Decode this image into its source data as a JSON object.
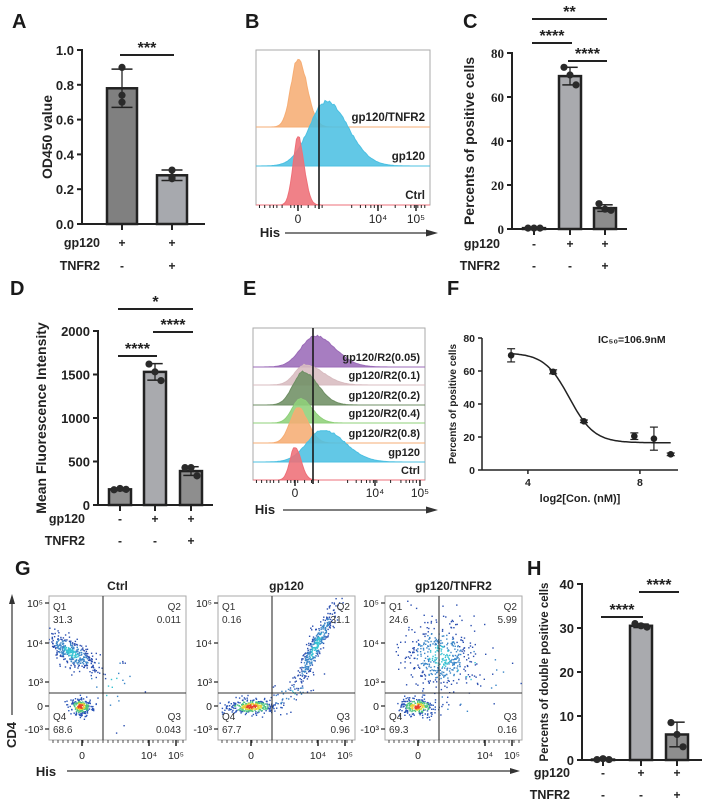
{
  "panel_labels": [
    "A",
    "B",
    "C",
    "D",
    "E",
    "F",
    "G",
    "H"
  ],
  "chart_data": [
    {
      "id": "A",
      "type": "bar",
      "ylabel": "OD450 value",
      "ylim": [
        0,
        1.0
      ],
      "yticks": [
        0,
        0.2,
        0.4,
        0.6,
        0.8,
        1.0
      ],
      "ytick_labels": [
        "0.0",
        "0.2",
        "0.4",
        "0.6",
        "0.8",
        "1.0"
      ],
      "conditions": [
        {
          "name": "gp120",
          "signs": [
            "+",
            "+"
          ]
        },
        {
          "name": "TNFR2",
          "signs": [
            "-",
            "+"
          ]
        }
      ],
      "values": [
        0.78,
        0.28
      ],
      "sd": [
        0.11,
        0.03
      ],
      "points": [
        [
          0.9,
          0.74,
          0.7
        ],
        [
          0.31,
          0.26,
          0.27
        ]
      ],
      "bar_colors": [
        "#808080",
        "#a7a9ae"
      ],
      "significance": [
        {
          "from": 0,
          "to": 1,
          "label": "***"
        }
      ]
    },
    {
      "id": "B",
      "type": "histogram",
      "xlabel": "His",
      "xtick_labels": [
        "0",
        "10⁴",
        "10⁵"
      ],
      "rows": [
        {
          "label": "gp120/TNFR2",
          "color": "#f6ad74"
        },
        {
          "label": "gp120",
          "color": "#4cc0e2"
        },
        {
          "label": "Ctrl",
          "color": "#ee6f78"
        }
      ]
    },
    {
      "id": "C",
      "type": "bar",
      "ylabel": "Percents of positive cells",
      "ylim": [
        0,
        80
      ],
      "yticks": [
        0,
        20,
        40,
        60,
        80
      ],
      "ytick_labels": [
        "0",
        "20",
        "40",
        "60",
        "80"
      ],
      "conditions": [
        {
          "name": "gp120",
          "signs": [
            "-",
            "+",
            "+"
          ]
        },
        {
          "name": "TNFR2",
          "signs": [
            "-",
            "-",
            "+"
          ]
        }
      ],
      "values": [
        0.4,
        69.5,
        9.5
      ],
      "sd": [
        0.1,
        4.0,
        1.5
      ],
      "points": [
        [
          0.4,
          0.4,
          0.4
        ],
        [
          73.5,
          70.0,
          65.5
        ],
        [
          11.5,
          9.0,
          8.5
        ]
      ],
      "bar_colors": [
        "#8c8c8c",
        "#a9aaae",
        "#8c8c8c"
      ],
      "significance": [
        {
          "from": 0,
          "to": 2,
          "label": "**"
        },
        {
          "from": 0,
          "to": 1,
          "label": "****"
        },
        {
          "from": 1,
          "to": 2,
          "label": "****"
        }
      ]
    },
    {
      "id": "D",
      "type": "bar",
      "ylabel": "Mean  Fluorescence Intensity",
      "ylim": [
        0,
        2000
      ],
      "yticks": [
        0,
        500,
        1000,
        1500,
        2000
      ],
      "ytick_labels": [
        "0",
        "500",
        "1000",
        "1500",
        "2000"
      ],
      "conditions": [
        {
          "name": "gp120",
          "signs": [
            "-",
            "+",
            "+"
          ]
        },
        {
          "name": "TNFR2",
          "signs": [
            "-",
            "-",
            "+"
          ]
        }
      ],
      "values": [
        180,
        1530,
        390
      ],
      "sd": [
        15,
        95,
        50
      ],
      "points": [
        [
          175,
          190,
          180
        ],
        [
          1620,
          1530,
          1430
        ],
        [
          430,
          430,
          335
        ]
      ],
      "bar_colors": [
        "#8e8e8e",
        "#a9aaae",
        "#8e8e8e"
      ],
      "significance": [
        {
          "from": 0,
          "to": 2,
          "label": "*"
        },
        {
          "from": 0,
          "to": 1,
          "label": "****"
        },
        {
          "from": 1,
          "to": 2,
          "label": "****"
        }
      ]
    },
    {
      "id": "E",
      "type": "histogram",
      "xlabel": "His",
      "xtick_labels": [
        "0",
        "10⁴",
        "10⁵"
      ],
      "rows": [
        {
          "label": "gp120/R2(0.05)",
          "color": "#9b6bb8"
        },
        {
          "label": "gp120/R2(0.1)",
          "color": "#d8bcc0"
        },
        {
          "label": "gp120/R2(0.2)",
          "color": "#6f8f64"
        },
        {
          "label": "gp120/R2(0.4)",
          "color": "#8fd07a"
        },
        {
          "label": "gp120/R2(0.8)",
          "color": "#f6ad74"
        },
        {
          "label": "gp120",
          "color": "#4cc0e2"
        },
        {
          "label": "Ctrl",
          "color": "#ee6f78"
        }
      ]
    },
    {
      "id": "F",
      "type": "scatter",
      "xlabel": "log2[Con. (nM)]",
      "ylabel": "Percents of positive cells",
      "annotation": "IC₅₀=106.9nM",
      "xlim": [
        2.36,
        9.36
      ],
      "ylim": [
        0,
        80
      ],
      "xticks": [
        4,
        8
      ],
      "yticks": [
        0,
        20,
        40,
        60,
        80
      ],
      "x": [
        3.4,
        4.9,
        6.0,
        7.8,
        8.5,
        9.1
      ],
      "y": [
        69.5,
        59.5,
        29.5,
        20.5,
        19.0,
        9.5
      ],
      "error": [
        4.0,
        1.2,
        0.8,
        2.0,
        7.0,
        0.8
      ],
      "fit": {
        "top": 71,
        "bottom": 16.5,
        "midpoint": 5.48,
        "slope": 2.25
      }
    },
    {
      "id": "G",
      "type": "scatter",
      "xlabel": "His",
      "ylabel": "CD4",
      "xtick_labels": [
        "0",
        "10⁴",
        "10⁵"
      ],
      "ytick_labels": [
        "10⁵",
        "10⁴",
        "10³",
        "0",
        "-10³"
      ],
      "plots": [
        {
          "title": "Ctrl",
          "quadrants": {
            "Q1": "31.3",
            "Q2": "0.011",
            "Q3": "0.043",
            "Q4": "68.6"
          }
        },
        {
          "title": "gp120",
          "quadrants": {
            "Q1": "0.16",
            "Q2": "31.1",
            "Q3": "0.96",
            "Q4": "67.7"
          }
        },
        {
          "title": "gp120/TNFR2",
          "quadrants": {
            "Q1": "24.6",
            "Q2": "5.99",
            "Q3": "0.16",
            "Q4": "69.3"
          }
        }
      ]
    },
    {
      "id": "H",
      "type": "bar",
      "ylabel": "Percents of double positive cells",
      "ylim": [
        0,
        40
      ],
      "yticks": [
        0,
        10,
        20,
        30,
        40
      ],
      "ytick_labels": [
        "0",
        "10",
        "20",
        "30",
        "40"
      ],
      "conditions": [
        {
          "name": "gp120",
          "signs": [
            "-",
            "+",
            "+"
          ]
        },
        {
          "name": "TNFR2",
          "signs": [
            "-",
            "-",
            "+"
          ]
        }
      ],
      "values": [
        0.1,
        30.5,
        5.8
      ],
      "sd": [
        0.1,
        0.4,
        2.8
      ],
      "points": [
        [
          0.1,
          0.3,
          0.1
        ],
        [
          31.0,
          30.5,
          30.2
        ],
        [
          8.5,
          5.8,
          3.0
        ]
      ],
      "bar_colors": [
        "#8e8e8e",
        "#a9aaae",
        "#8e8e8e"
      ],
      "significance": [
        {
          "from": 0,
          "to": 1,
          "label": "****"
        },
        {
          "from": 1,
          "to": 2,
          "label": "****"
        }
      ]
    }
  ]
}
